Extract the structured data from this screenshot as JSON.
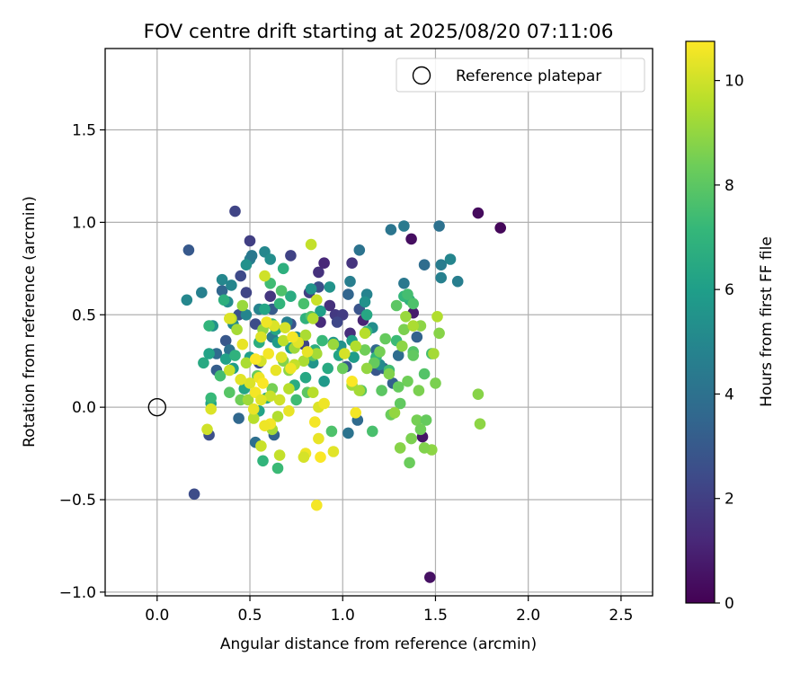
{
  "chart_data": {
    "type": "scatter",
    "title": "FOV centre drift starting at 2025/08/20 07:11:06",
    "xlabel": "Angular distance from reference (arcmin)",
    "ylabel": "Rotation from reference (arcmin)",
    "xlim": [
      -0.28,
      2.67
    ],
    "ylim": [
      -1.02,
      1.94
    ],
    "xticks": [
      0.0,
      0.5,
      1.0,
      1.5,
      2.0,
      2.5
    ],
    "xtick_labels": [
      "0.0",
      "0.5",
      "1.0",
      "1.5",
      "2.0",
      "2.5"
    ],
    "yticks": [
      -1.0,
      -0.5,
      0.0,
      0.5,
      1.0,
      1.5
    ],
    "ytick_labels": [
      "−1.0",
      "−0.5",
      "0.0",
      "0.5",
      "1.0",
      "1.5"
    ],
    "grid": true,
    "legend": {
      "placement": "top-right",
      "entries": [
        {
          "label": "Reference platepar",
          "marker": "open-circle",
          "color": "#000000"
        }
      ]
    },
    "reference_point": {
      "label": "Reference platepar",
      "x": 0.0,
      "y": 0.0
    },
    "colorbar": {
      "label": "Hours from first FF file",
      "colormap": "viridis",
      "range": [
        0,
        10.75
      ],
      "ticks": [
        0,
        2,
        4,
        6,
        8,
        10
      ],
      "tick_labels": [
        "0",
        "2",
        "4",
        "6",
        "8",
        "10"
      ]
    },
    "points": [
      [
        1.73,
        1.05,
        0.3
      ],
      [
        1.85,
        0.97,
        0.2
      ],
      [
        1.37,
        0.91,
        0.4
      ],
      [
        1.47,
        -0.92,
        0.5
      ],
      [
        1.43,
        -0.16,
        0.6
      ],
      [
        1.38,
        0.51,
        0.8
      ],
      [
        0.42,
        1.06,
        2.2
      ],
      [
        0.2,
        -0.47,
        2.5
      ],
      [
        0.17,
        0.85,
        3.0
      ],
      [
        0.5,
        0.9,
        2.0
      ],
      [
        0.45,
        0.71,
        2.4
      ],
      [
        0.72,
        0.82,
        2.1
      ],
      [
        0.87,
        0.73,
        1.5
      ],
      [
        0.9,
        0.78,
        1.2
      ],
      [
        1.05,
        0.78,
        1.6
      ],
      [
        0.96,
        0.5,
        1.8
      ],
      [
        0.88,
        0.46,
        1.3
      ],
      [
        0.82,
        0.62,
        2.0
      ],
      [
        1.0,
        0.5,
        1.9
      ],
      [
        0.93,
        0.55,
        1.5
      ],
      [
        1.04,
        0.4,
        1.4
      ],
      [
        1.11,
        0.47,
        1.1
      ],
      [
        0.97,
        0.46,
        2.3
      ],
      [
        0.87,
        0.65,
        2.6
      ],
      [
        0.61,
        0.6,
        1.7
      ],
      [
        0.72,
        0.45,
        2.8
      ],
      [
        0.79,
        0.34,
        2.2
      ],
      [
        0.53,
        0.45,
        2.5
      ],
      [
        0.62,
        0.53,
        3.1
      ],
      [
        0.37,
        0.36,
        2.9
      ],
      [
        0.44,
        0.5,
        2.7
      ],
      [
        0.55,
        0.24,
        2.4
      ],
      [
        0.32,
        0.2,
        3.2
      ],
      [
        0.28,
        -0.15,
        2.6
      ],
      [
        0.35,
        0.63,
        3.5
      ],
      [
        0.48,
        0.62,
        2.2
      ],
      [
        1.18,
        0.2,
        2.9
      ],
      [
        1.27,
        0.13,
        3.3
      ],
      [
        1.4,
        0.38,
        3.4
      ],
      [
        1.3,
        0.28,
        3.8
      ],
      [
        1.22,
        0.21,
        3.2
      ],
      [
        1.18,
        0.31,
        3.6
      ],
      [
        1.02,
        0.22,
        3.0
      ],
      [
        1.09,
        0.53,
        2.8
      ],
      [
        1.08,
        -0.07,
        3.7
      ],
      [
        1.03,
        -0.14,
        4.1
      ],
      [
        0.63,
        -0.15,
        3.4
      ],
      [
        0.53,
        -0.19,
        3.9
      ],
      [
        0.44,
        -0.06,
        3.6
      ],
      [
        0.32,
        0.29,
        3.7
      ],
      [
        0.39,
        0.31,
        4.0
      ],
      [
        1.26,
        0.96,
        4.2
      ],
      [
        1.33,
        0.98,
        4.4
      ],
      [
        1.52,
        0.98,
        4.0
      ],
      [
        1.44,
        0.77,
        3.8
      ],
      [
        1.53,
        0.77,
        4.5
      ],
      [
        1.58,
        0.8,
        4.9
      ],
      [
        1.53,
        0.7,
        4.7
      ],
      [
        1.62,
        0.68,
        4.6
      ],
      [
        1.33,
        0.67,
        4.3
      ],
      [
        1.09,
        0.85,
        4.1
      ],
      [
        1.13,
        0.61,
        4.8
      ],
      [
        1.03,
        0.61,
        3.5
      ],
      [
        1.04,
        0.68,
        4.6
      ],
      [
        0.5,
        0.8,
        4.6
      ],
      [
        0.51,
        0.82,
        4.3
      ],
      [
        0.16,
        0.58,
        5.0
      ],
      [
        0.24,
        0.62,
        4.7
      ],
      [
        0.35,
        0.69,
        5.0
      ],
      [
        0.4,
        0.66,
        4.9
      ],
      [
        0.38,
        0.57,
        5.2
      ],
      [
        0.48,
        0.77,
        5.4
      ],
      [
        0.58,
        0.84,
        5.0
      ],
      [
        0.61,
        0.8,
        5.3
      ],
      [
        0.3,
        0.44,
        5.4
      ],
      [
        0.41,
        0.45,
        5.1
      ],
      [
        0.48,
        0.5,
        4.9
      ],
      [
        0.55,
        0.53,
        4.8
      ],
      [
        0.62,
        0.38,
        4.5
      ],
      [
        0.7,
        0.46,
        4.7
      ],
      [
        0.75,
        0.38,
        5.2
      ],
      [
        0.83,
        0.64,
        5.5
      ],
      [
        0.93,
        0.65,
        5.5
      ],
      [
        1.12,
        0.57,
        5.4
      ],
      [
        1.16,
        0.43,
        5.3
      ],
      [
        1.2,
        0.23,
        5.1
      ],
      [
        0.99,
        0.33,
        5.4
      ],
      [
        0.95,
        0.35,
        5.7
      ],
      [
        0.9,
        0.14,
        5.8
      ],
      [
        0.84,
        0.24,
        5.6
      ],
      [
        1.06,
        0.27,
        5.9
      ],
      [
        0.72,
        0.32,
        6.1
      ],
      [
        0.5,
        0.27,
        6.0
      ],
      [
        0.58,
        0.53,
        6.3
      ],
      [
        0.64,
        0.42,
        6.4
      ],
      [
        0.88,
        0.52,
        6.0
      ],
      [
        0.28,
        0.29,
        6.2
      ],
      [
        0.37,
        0.26,
        6.1
      ],
      [
        0.41,
        0.21,
        5.9
      ],
      [
        0.29,
        0.02,
        6.2
      ],
      [
        0.47,
        0.1,
        6.3
      ],
      [
        0.65,
        0.35,
        5.9
      ],
      [
        0.92,
        0.21,
        6.5
      ],
      [
        0.98,
        0.28,
        6.2
      ],
      [
        0.8,
        0.16,
        6.4
      ],
      [
        0.74,
        0.12,
        6.6
      ],
      [
        0.85,
        0.31,
        6.7
      ],
      [
        1.05,
        0.36,
        6.1
      ],
      [
        1.13,
        0.5,
        6.4
      ],
      [
        0.55,
        -0.02,
        6.2
      ],
      [
        0.59,
        0.05,
        6.6
      ],
      [
        0.25,
        0.24,
        6.5
      ],
      [
        1.36,
        0.58,
        6.9
      ],
      [
        1.33,
        0.6,
        7.1
      ],
      [
        0.68,
        0.75,
        6.8
      ],
      [
        0.72,
        0.6,
        6.6
      ],
      [
        0.36,
        0.58,
        6.8
      ],
      [
        0.28,
        0.44,
        7.0
      ],
      [
        0.42,
        0.28,
        6.9
      ],
      [
        0.55,
        0.35,
        6.7
      ],
      [
        0.62,
        0.45,
        7.2
      ],
      [
        0.66,
        0.56,
        7.0
      ],
      [
        0.8,
        0.48,
        6.9
      ],
      [
        0.89,
        0.36,
        7.2
      ],
      [
        0.57,
        -0.29,
        7.0
      ],
      [
        0.65,
        -0.33,
        7.3
      ],
      [
        0.29,
        0.05,
        7.2
      ],
      [
        1.13,
        0.41,
        7.1
      ],
      [
        1.18,
        0.27,
        7.0
      ],
      [
        1.25,
        0.2,
        7.4
      ],
      [
        1.16,
        -0.13,
        7.6
      ],
      [
        0.94,
        -0.13,
        7.7
      ],
      [
        1.44,
        0.18,
        7.8
      ],
      [
        1.48,
        0.29,
        7.5
      ],
      [
        1.38,
        0.3,
        7.8
      ],
      [
        1.29,
        0.36,
        7.3
      ],
      [
        1.35,
        0.61,
        7.5
      ],
      [
        1.38,
        0.56,
        7.7
      ],
      [
        0.61,
        0.67,
        7.4
      ],
      [
        0.67,
        0.63,
        7.7
      ],
      [
        0.79,
        0.56,
        7.6
      ],
      [
        0.83,
        0.49,
        7.8
      ],
      [
        0.39,
        0.08,
        7.9
      ],
      [
        0.34,
        0.17,
        7.5
      ],
      [
        0.75,
        0.04,
        7.4
      ],
      [
        0.81,
        0.08,
        8.0
      ],
      [
        0.84,
        0.28,
        7.9
      ],
      [
        1.1,
        0.09,
        7.9
      ],
      [
        1.21,
        0.09,
        8.0
      ],
      [
        1.31,
        0.02,
        8.1
      ],
      [
        1.26,
        -0.04,
        8.3
      ],
      [
        1.4,
        -0.07,
        8.5
      ],
      [
        1.45,
        -0.07,
        8.2
      ],
      [
        1.42,
        -0.12,
        8.4
      ],
      [
        1.37,
        -0.17,
        8.6
      ],
      [
        1.31,
        -0.22,
        8.8
      ],
      [
        1.36,
        -0.3,
        8.3
      ],
      [
        1.48,
        -0.23,
        8.9
      ],
      [
        1.44,
        -0.22,
        8.7
      ],
      [
        1.41,
        0.09,
        8.6
      ],
      [
        1.35,
        0.14,
        8.4
      ],
      [
        1.3,
        0.11,
        8.2
      ],
      [
        1.25,
        0.18,
        8.7
      ],
      [
        1.2,
        0.3,
        8.5
      ],
      [
        1.23,
        0.37,
        8.2
      ],
      [
        1.32,
        0.33,
        8.9
      ],
      [
        1.38,
        0.28,
        8.1
      ],
      [
        1.29,
        0.55,
        8.0
      ],
      [
        1.12,
        0.31,
        8.4
      ],
      [
        1.17,
        0.24,
        8.2
      ],
      [
        1.0,
        0.21,
        8.3
      ],
      [
        1.73,
        0.07,
        8.8
      ],
      [
        1.74,
        -0.09,
        8.9
      ],
      [
        1.5,
        0.13,
        8.6
      ],
      [
        1.52,
        0.4,
        8.8
      ],
      [
        1.33,
        0.42,
        8.6
      ],
      [
        1.42,
        0.44,
        8.9
      ],
      [
        1.28,
        -0.03,
        9.0
      ],
      [
        0.62,
        0.1,
        8.5
      ],
      [
        0.54,
        0.17,
        8.3
      ],
      [
        0.45,
        0.04,
        8.4
      ],
      [
        0.68,
        0.25,
        8.7
      ],
      [
        0.71,
        0.2,
        8.9
      ],
      [
        0.57,
        0.42,
        9.0
      ],
      [
        1.49,
        0.29,
        9.3
      ],
      [
        1.51,
        0.49,
        9.5
      ],
      [
        1.34,
        0.49,
        9.1
      ],
      [
        1.38,
        0.44,
        9.4
      ],
      [
        1.05,
        0.12,
        9.2
      ],
      [
        1.09,
        0.09,
        9.3
      ],
      [
        1.13,
        0.21,
        9.0
      ],
      [
        1.07,
        0.33,
        9.5
      ],
      [
        1.12,
        0.4,
        9.6
      ],
      [
        0.95,
        0.34,
        9.1
      ],
      [
        0.84,
        0.08,
        9.6
      ],
      [
        0.86,
        0.29,
        9.3
      ],
      [
        0.79,
        0.25,
        9.4
      ],
      [
        0.74,
        0.32,
        9.2
      ],
      [
        0.68,
        0.36,
        9.7
      ],
      [
        0.65,
        -0.05,
        9.5
      ],
      [
        0.62,
        -0.12,
        9.3
      ],
      [
        0.66,
        -0.26,
        9.8
      ],
      [
        0.56,
        -0.21,
        9.9
      ],
      [
        0.52,
        -0.06,
        9.6
      ],
      [
        0.49,
        0.04,
        9.2
      ],
      [
        0.48,
        0.24,
        9.4
      ],
      [
        0.43,
        0.42,
        9.3
      ],
      [
        0.46,
        0.55,
        9.1
      ],
      [
        0.4,
        0.48,
        9.7
      ],
      [
        0.83,
        0.88,
        9.8
      ],
      [
        0.86,
        0.58,
        9.9
      ],
      [
        0.84,
        0.48,
        9.5
      ],
      [
        0.8,
        0.39,
        9.4
      ],
      [
        0.74,
        0.23,
        9.8
      ],
      [
        0.71,
        0.1,
        9.6
      ],
      [
        0.66,
        0.04,
        10.0
      ],
      [
        0.61,
        0.06,
        9.9
      ],
      [
        0.56,
        0.25,
        10.1
      ],
      [
        0.5,
        0.13,
        10.2
      ],
      [
        0.45,
        0.15,
        10.3
      ],
      [
        0.39,
        0.2,
        9.9
      ],
      [
        0.27,
        -0.12,
        10.0
      ],
      [
        0.29,
        -0.01,
        10.2
      ],
      [
        0.58,
        0.71,
        10.0
      ],
      [
        0.63,
        0.44,
        10.2
      ],
      [
        0.69,
        0.43,
        10.1
      ],
      [
        0.76,
        0.35,
        10.3
      ],
      [
        0.81,
        0.3,
        10.4
      ],
      [
        0.87,
        0.0,
        10.2
      ],
      [
        0.9,
        0.02,
        10.5
      ],
      [
        0.85,
        -0.08,
        10.6
      ],
      [
        0.87,
        -0.17,
        10.4
      ],
      [
        0.88,
        -0.27,
        10.7
      ],
      [
        0.95,
        -0.24,
        10.3
      ],
      [
        0.86,
        -0.53,
        10.6
      ],
      [
        0.8,
        -0.25,
        10.5
      ],
      [
        0.79,
        -0.27,
        10.1
      ],
      [
        0.71,
        -0.02,
        10.4
      ],
      [
        0.61,
        -0.09,
        10.6
      ],
      [
        0.55,
        0.16,
        10.5
      ],
      [
        0.53,
        0.26,
        10.7
      ],
      [
        0.6,
        0.29,
        10.6
      ],
      [
        0.64,
        0.2,
        10.4
      ],
      [
        0.67,
        0.27,
        10.3
      ],
      [
        0.72,
        0.21,
        10.5
      ],
      [
        0.57,
        0.13,
        10.7
      ],
      [
        0.53,
        0.08,
        10.6
      ],
      [
        0.56,
        0.04,
        10.3
      ],
      [
        0.58,
        -0.1,
        10.5
      ],
      [
        0.52,
        -0.01,
        10.4
      ],
      [
        1.01,
        0.29,
        10.1
      ],
      [
        1.07,
        -0.03,
        10.6
      ],
      [
        1.05,
        0.14,
        10.7
      ],
      [
        0.46,
        0.34,
        10.4
      ],
      [
        0.39,
        0.48,
        10.2
      ],
      [
        0.73,
        0.38,
        10.6
      ],
      [
        0.59,
        0.46,
        10.5
      ],
      [
        0.56,
        0.38,
        10.2
      ]
    ]
  }
}
